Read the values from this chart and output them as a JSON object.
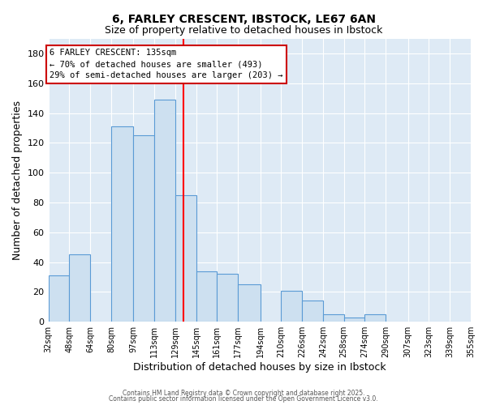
{
  "title": "6, FARLEY CRESCENT, IBSTOCK, LE67 6AN",
  "subtitle": "Size of property relative to detached houses in Ibstock",
  "xlabel": "Distribution of detached houses by size in Ibstock",
  "ylabel": "Number of detached properties",
  "bar_color": "#cde0f0",
  "bar_edge_color": "#5b9bd5",
  "background_color": "#deeaf5",
  "grid_color": "#ffffff",
  "vline_x": 135,
  "vline_color": "red",
  "categories": [
    "32sqm",
    "48sqm",
    "64sqm",
    "80sqm",
    "97sqm",
    "113sqm",
    "129sqm",
    "145sqm",
    "161sqm",
    "177sqm",
    "194sqm",
    "210sqm",
    "226sqm",
    "242sqm",
    "258sqm",
    "274sqm",
    "290sqm",
    "307sqm",
    "323sqm",
    "339sqm",
    "355sqm"
  ],
  "bin_edges": [
    32,
    48,
    64,
    80,
    97,
    113,
    129,
    145,
    161,
    177,
    194,
    210,
    226,
    242,
    258,
    274,
    290,
    307,
    323,
    339,
    355
  ],
  "bin_counts": [
    31,
    45,
    0,
    131,
    125,
    149,
    85,
    34,
    32,
    25,
    0,
    21,
    14,
    5,
    3,
    5,
    0,
    0,
    0,
    0,
    1
  ],
  "ylim": [
    0,
    190
  ],
  "yticks": [
    0,
    20,
    40,
    60,
    80,
    100,
    120,
    140,
    160,
    180
  ],
  "annotation_title": "6 FARLEY CRESCENT: 135sqm",
  "annotation_line1": "← 70% of detached houses are smaller (493)",
  "annotation_line2": "29% of semi-detached houses are larger (203) →",
  "footer1": "Contains HM Land Registry data © Crown copyright and database right 2025.",
  "footer2": "Contains public sector information licensed under the Open Government Licence v3.0."
}
